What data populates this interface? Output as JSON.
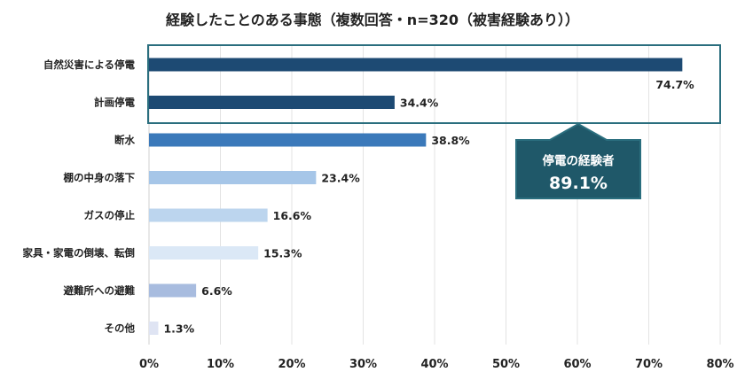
{
  "chart_data": {
    "type": "bar",
    "orientation": "horizontal",
    "title": "経験したことのある事態（複数回答・n=320（被害経験あり））",
    "categories": [
      "自然災害による停電",
      "計画停電",
      "断水",
      "棚の中身の落下",
      "ガスの停止",
      "家具・家電の倒壊、転倒",
      "避難所への避難",
      "その他"
    ],
    "values": [
      74.7,
      34.4,
      38.8,
      23.4,
      16.6,
      15.3,
      6.6,
      1.3
    ],
    "value_labels": [
      "74.7%",
      "34.4%",
      "38.8%",
      "23.4%",
      "16.6%",
      "15.3%",
      "6.6%",
      "1.3%"
    ],
    "bar_colors": [
      "#1d4a73",
      "#1d4a73",
      "#3b79ba",
      "#a6c6e8",
      "#bcd5ee",
      "#dbe8f6",
      "#a8bcdf",
      "#dfe4f3"
    ],
    "xlim": [
      0,
      80
    ],
    "xticks": [
      "0%",
      "10%",
      "20%",
      "30%",
      "40%",
      "50%",
      "60%",
      "70%",
      "80%"
    ],
    "xlabel": "",
    "ylabel": "",
    "grid": "vertical",
    "legend": "none",
    "annotation": {
      "text": "停電の経験者",
      "value": "89.1%",
      "bg_color": "#1f5869",
      "border_color": "#2a6e7e",
      "highlights": [
        "自然災害による停電",
        "計画停電"
      ]
    }
  }
}
